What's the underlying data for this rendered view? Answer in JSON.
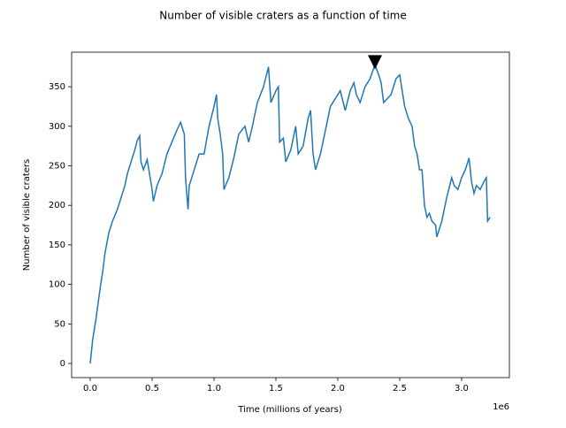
{
  "chart_data": {
    "type": "line",
    "title": "Number of visible craters as a function of time",
    "x_label": "Time (millions of years)",
    "y_label": "Number of visible craters",
    "x_offset_label": "1e6",
    "xlim": [
      -150000,
      3386000
    ],
    "ylim": [
      -17.9,
      393.7
    ],
    "xticks": [
      {
        "value": 0,
        "label": "0.0"
      },
      {
        "value": 500000,
        "label": "0.5"
      },
      {
        "value": 1000000,
        "label": "1.0"
      },
      {
        "value": 1500000,
        "label": "1.5"
      },
      {
        "value": 2000000,
        "label": "2.0"
      },
      {
        "value": 2500000,
        "label": "2.5"
      },
      {
        "value": 3000000,
        "label": "3.0"
      }
    ],
    "yticks": [
      0,
      50,
      100,
      150,
      200,
      250,
      300,
      350
    ],
    "series": [
      {
        "color": "#1f77b4",
        "x": [
          0,
          20000,
          50000,
          80000,
          100000,
          120000,
          150000,
          180000,
          220000,
          250000,
          280000,
          300000,
          330000,
          360000,
          380000,
          400000,
          410000,
          430000,
          460000,
          500000,
          510000,
          540000,
          580000,
          620000,
          660000,
          700000,
          730000,
          760000,
          770000,
          790000,
          800000,
          840000,
          880000,
          920000,
          960000,
          1000000,
          1020000,
          1030000,
          1050000,
          1070000,
          1080000,
          1120000,
          1160000,
          1200000,
          1250000,
          1280000,
          1310000,
          1350000,
          1400000,
          1440000,
          1460000,
          1500000,
          1520000,
          1530000,
          1560000,
          1580000,
          1620000,
          1660000,
          1680000,
          1720000,
          1760000,
          1780000,
          1800000,
          1820000,
          1860000,
          1900000,
          1940000,
          1980000,
          2020000,
          2060000,
          2100000,
          2130000,
          2150000,
          2180000,
          2220000,
          2260000,
          2300000,
          2330000,
          2350000,
          2370000,
          2400000,
          2430000,
          2470000,
          2500000,
          2520000,
          2540000,
          2570000,
          2600000,
          2620000,
          2640000,
          2660000,
          2680000,
          2700000,
          2720000,
          2740000,
          2760000,
          2790000,
          2800000,
          2840000,
          2880000,
          2920000,
          2940000,
          2970000,
          3000000,
          3030000,
          3060000,
          3080000,
          3100000,
          3120000,
          3150000,
          3180000,
          3200000,
          3210000,
          3230000
        ],
        "values": [
          0,
          30,
          60,
          95,
          115,
          140,
          165,
          180,
          195,
          210,
          225,
          240,
          255,
          270,
          282,
          288,
          255,
          245,
          258,
          220,
          205,
          225,
          240,
          265,
          280,
          295,
          305,
          290,
          235,
          195,
          225,
          245,
          265,
          265,
          300,
          325,
          340,
          310,
          290,
          265,
          220,
          235,
          260,
          290,
          300,
          280,
          300,
          330,
          350,
          375,
          330,
          345,
          350,
          280,
          285,
          255,
          270,
          300,
          265,
          275,
          310,
          320,
          265,
          245,
          265,
          295,
          325,
          335,
          345,
          320,
          345,
          355,
          340,
          330,
          350,
          360,
          378,
          365,
          355,
          330,
          335,
          340,
          360,
          365,
          345,
          325,
          310,
          300,
          275,
          265,
          245,
          245,
          200,
          185,
          190,
          180,
          175,
          160,
          180,
          210,
          235,
          225,
          220,
          235,
          245,
          260,
          230,
          215,
          225,
          220,
          230,
          235,
          180,
          185
        ]
      }
    ],
    "marker": {
      "x": 2300000,
      "y": 381,
      "color": "#000000"
    }
  }
}
